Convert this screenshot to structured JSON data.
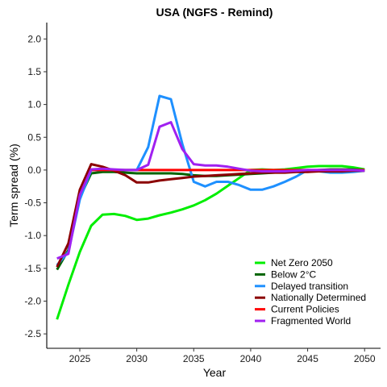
{
  "chart_data": {
    "type": "line",
    "title": "USA (NGFS - Remind)",
    "xlabel": "Year",
    "ylabel": "Term spread (%)",
    "xlim": [
      2022.1,
      2051.4
    ],
    "ylim": [
      -2.72,
      2.25
    ],
    "x_ticks": [
      2025,
      2030,
      2035,
      2040,
      2045,
      2050
    ],
    "y_ticks": [
      -2.5,
      -2.0,
      -1.5,
      -1.0,
      -0.5,
      0.0,
      0.5,
      1.0,
      1.5,
      2.0
    ],
    "y_tick_labels": [
      "-2.5",
      "-2.0",
      "-1.5",
      "-1.0",
      "-0.5",
      "0.0",
      "0.5",
      "1.0",
      "1.5",
      "2.0"
    ],
    "x_tick_labels": [
      "2025",
      "2030",
      "2035",
      "2040",
      "2045",
      "2050"
    ],
    "grid": false,
    "legend_position": "bottom-right",
    "series": [
      {
        "name": "Net Zero 2050",
        "color": "#00ee00",
        "x": [
          2023,
          2024,
          2025,
          2026,
          2027,
          2028,
          2029,
          2030,
          2031,
          2032,
          2033,
          2034,
          2035,
          2036,
          2037,
          2038,
          2039,
          2040,
          2041,
          2042,
          2043,
          2044,
          2045,
          2046,
          2047,
          2048,
          2049,
          2050
        ],
        "values": [
          -2.28,
          -1.75,
          -1.25,
          -0.85,
          -0.68,
          -0.67,
          -0.7,
          -0.76,
          -0.74,
          -0.69,
          -0.65,
          -0.6,
          -0.54,
          -0.46,
          -0.36,
          -0.24,
          -0.12,
          0.0,
          0.01,
          0.0,
          0.01,
          0.03,
          0.05,
          0.06,
          0.06,
          0.06,
          0.04,
          0.01
        ]
      },
      {
        "name": "Below 2°C",
        "color": "#006400",
        "x": [
          2023,
          2024,
          2025,
          2026,
          2027,
          2028,
          2029,
          2030,
          2031,
          2032,
          2033,
          2034,
          2035,
          2036,
          2037,
          2038,
          2039,
          2040,
          2041,
          2042,
          2043,
          2044,
          2045,
          2046,
          2047,
          2048,
          2049,
          2050
        ],
        "values": [
          -1.52,
          -1.22,
          -0.42,
          -0.05,
          -0.03,
          -0.03,
          -0.04,
          -0.05,
          -0.05,
          -0.05,
          -0.05,
          -0.06,
          -0.08,
          -0.09,
          -0.09,
          -0.08,
          -0.07,
          -0.06,
          -0.05,
          -0.04,
          -0.03,
          -0.02,
          -0.01,
          0.0,
          0.01,
          0.01,
          0.01,
          0.0
        ]
      },
      {
        "name": "Delayed transition",
        "color": "#1e90ff",
        "x": [
          2023,
          2024,
          2025,
          2026,
          2027,
          2028,
          2029,
          2030,
          2031,
          2032,
          2033,
          2034,
          2035,
          2036,
          2037,
          2038,
          2039,
          2040,
          2041,
          2042,
          2043,
          2044,
          2045,
          2046,
          2047,
          2048,
          2049,
          2050
        ],
        "values": [
          -1.45,
          -1.25,
          -0.45,
          0.0,
          0.0,
          0.0,
          0.0,
          0.0,
          0.35,
          1.13,
          1.08,
          0.4,
          -0.18,
          -0.25,
          -0.18,
          -0.18,
          -0.23,
          -0.3,
          -0.3,
          -0.25,
          -0.18,
          -0.1,
          0.0,
          -0.02,
          -0.04,
          -0.04,
          -0.03,
          -0.01
        ]
      },
      {
        "name": "Nationally Determined",
        "color": "#8b0000",
        "x": [
          2023,
          2024,
          2025,
          2026,
          2027,
          2028,
          2029,
          2030,
          2031,
          2032,
          2033,
          2034,
          2035,
          2036,
          2037,
          2038,
          2039,
          2040,
          2041,
          2042,
          2043,
          2044,
          2045,
          2046,
          2047,
          2048,
          2049,
          2050
        ],
        "values": [
          -1.48,
          -1.12,
          -0.3,
          0.09,
          0.05,
          -0.01,
          -0.08,
          -0.19,
          -0.19,
          -0.16,
          -0.14,
          -0.12,
          -0.1,
          -0.09,
          -0.08,
          -0.07,
          -0.06,
          -0.05,
          -0.04,
          -0.04,
          -0.04,
          -0.03,
          -0.03,
          -0.02,
          -0.02,
          -0.02,
          -0.01,
          -0.01
        ]
      },
      {
        "name": "Current Policies",
        "color": "#ff0000",
        "x": [
          2026,
          2027,
          2028,
          2029,
          2030,
          2031,
          2032,
          2033,
          2034,
          2035,
          2036,
          2037,
          2038,
          2039,
          2040,
          2041,
          2042,
          2043,
          2044,
          2045,
          2046,
          2047,
          2048,
          2049,
          2050
        ],
        "values": [
          0.0,
          0.0,
          0.0,
          0.0,
          0.0,
          0.0,
          0.0,
          0.0,
          0.0,
          0.0,
          0.0,
          0.0,
          0.0,
          0.0,
          0.0,
          0.0,
          0.0,
          0.0,
          0.0,
          0.0,
          0.0,
          0.0,
          0.0,
          0.0,
          0.0
        ]
      },
      {
        "name": "Fragmented World",
        "color": "#a020f0",
        "x": [
          2023,
          2024,
          2025,
          2026,
          2027,
          2028,
          2029,
          2030,
          2031,
          2032,
          2033,
          2034,
          2035,
          2036,
          2037,
          2038,
          2039,
          2040,
          2041,
          2042,
          2043,
          2044,
          2045,
          2046,
          2047,
          2048,
          2049,
          2050
        ],
        "values": [
          -1.35,
          -1.28,
          -0.38,
          0.01,
          0.02,
          0.01,
          0.0,
          0.0,
          0.08,
          0.66,
          0.73,
          0.32,
          0.09,
          0.07,
          0.07,
          0.05,
          0.02,
          -0.01,
          -0.02,
          -0.02,
          -0.02,
          -0.01,
          0.0,
          0.0,
          0.0,
          0.0,
          0.0,
          -0.01
        ]
      }
    ],
    "legend_order": [
      "Net Zero 2050",
      "Below 2°C",
      "Delayed transition",
      "Nationally Determined",
      "Current Policies",
      "Fragmented World"
    ]
  }
}
